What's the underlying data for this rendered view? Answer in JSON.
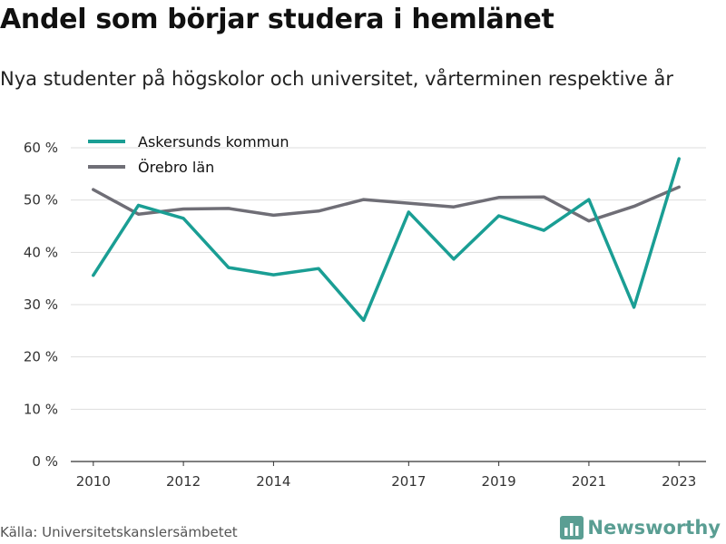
{
  "header": {
    "title": "Andel som börjar studera i hemlänet",
    "subtitle": "Nya studenter på högskolor och universitet, vårterminen respektive år"
  },
  "footer": {
    "source": "Källa: Universitetskanslersämbetet",
    "brand": "Newsworthy",
    "brand_color": "#5a9e93"
  },
  "chart_data": {
    "type": "line",
    "x": [
      2010,
      2011,
      2012,
      2013,
      2014,
      2015,
      2016,
      2017,
      2018,
      2019,
      2020,
      2021,
      2022,
      2023
    ],
    "xticks": [
      2010,
      2012,
      2014,
      2017,
      2019,
      2021,
      2023
    ],
    "xlim": [
      2009.5,
      2023.6
    ],
    "ylim": [
      0,
      60
    ],
    "yticks": [
      0,
      10,
      20,
      30,
      40,
      50,
      60
    ],
    "ytick_labels": [
      "0 %",
      "10 %",
      "20 %",
      "30 %",
      "40 %",
      "50 %",
      "60 %"
    ],
    "grid": true,
    "legend": "top-left",
    "series": [
      {
        "name": "Askersunds kommun",
        "color": "#1a9e94",
        "values": [
          35.6,
          49.0,
          46.5,
          37.1,
          35.7,
          36.9,
          27.0,
          47.7,
          38.7,
          47.0,
          44.2,
          50.1,
          29.5,
          57.9
        ]
      },
      {
        "name": "Örebro län",
        "color": "#6f6e76",
        "values": [
          52.0,
          47.3,
          48.3,
          48.4,
          47.1,
          47.9,
          50.1,
          49.4,
          48.7,
          50.5,
          50.6,
          46.0,
          48.8,
          52.5
        ]
      }
    ]
  }
}
